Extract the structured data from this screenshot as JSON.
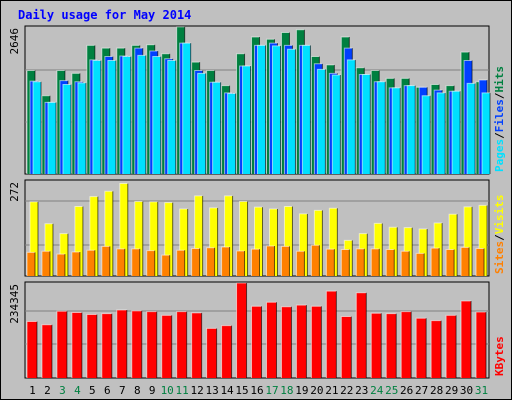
{
  "title": "Daily usage for May 2014",
  "title_color": "#0000ff",
  "colors": {
    "background": "#c0c0c0",
    "hits": "#008040",
    "files": "#0040ff",
    "pages": "#00e0ff",
    "visits": "#ffff00",
    "sites": "#ff8000",
    "kbytes": "#ff0000",
    "weekend_day": "#008040",
    "weekday_day": "#000000"
  },
  "chart_data": [
    {
      "type": "bar",
      "panel": "hits-files-pages",
      "ymax_label": "2646",
      "ylim": [
        0,
        2646
      ],
      "legend": [
        "Pages",
        "Files",
        "Hits"
      ],
      "categories": [
        "1",
        "2",
        "3",
        "4",
        "5",
        "6",
        "7",
        "8",
        "9",
        "10",
        "11",
        "12",
        "13",
        "14",
        "15",
        "16",
        "17",
        "18",
        "19",
        "20",
        "21",
        "22",
        "23",
        "24",
        "25",
        "26",
        "27",
        "28",
        "29",
        "30",
        "31"
      ],
      "series": [
        {
          "name": "Hits",
          "values": [
            1850,
            1400,
            1850,
            1800,
            2300,
            2250,
            2250,
            2300,
            2310,
            2150,
            2630,
            2000,
            1850,
            1580,
            2150,
            2450,
            2410,
            2530,
            2580,
            2100,
            1950,
            2450,
            1900,
            1850,
            1710,
            1710,
            1550,
            1600,
            1580,
            2180,
            1650
          ]
        },
        {
          "name": "Files",
          "values": [
            1660,
            1280,
            1670,
            1650,
            2040,
            2100,
            2110,
            2250,
            2200,
            2060,
            2340,
            1850,
            1640,
            1450,
            1930,
            2300,
            2340,
            2300,
            2300,
            1970,
            1800,
            2250,
            1780,
            1650,
            1540,
            1580,
            1550,
            1500,
            1480,
            2030,
            1680
          ]
        },
        {
          "name": "Pages",
          "values": [
            1650,
            1280,
            1600,
            1630,
            2030,
            2030,
            2100,
            2120,
            2100,
            2030,
            2340,
            1800,
            1640,
            1440,
            1930,
            2300,
            2290,
            2230,
            2300,
            1870,
            1770,
            2040,
            1780,
            1650,
            1540,
            1580,
            1400,
            1450,
            1480,
            1620,
            1450
          ]
        }
      ]
    },
    {
      "type": "bar",
      "panel": "visits-sites",
      "ymax_label": "272",
      "ylim": [
        0,
        272
      ],
      "legend": [
        "Sites",
        "Visits"
      ],
      "categories": [
        "1",
        "2",
        "3",
        "4",
        "5",
        "6",
        "7",
        "8",
        "9",
        "10",
        "11",
        "12",
        "13",
        "14",
        "15",
        "16",
        "17",
        "18",
        "19",
        "20",
        "21",
        "22",
        "23",
        "24",
        "25",
        "26",
        "27",
        "28",
        "29",
        "30",
        "31"
      ],
      "series": [
        {
          "name": "Visits",
          "values": [
            210,
            148,
            120,
            197,
            225,
            240,
            262,
            211,
            210,
            208,
            190,
            227,
            193,
            227,
            211,
            195,
            190,
            197,
            176,
            186,
            192,
            101,
            120,
            149,
            138,
            137,
            133,
            150,
            175,
            196,
            200
          ]
        },
        {
          "name": "Sites",
          "values": [
            67,
            70,
            62,
            68,
            73,
            84,
            77,
            77,
            72,
            59,
            73,
            78,
            80,
            82,
            71,
            76,
            85,
            84,
            70,
            87,
            76,
            75,
            77,
            77,
            75,
            70,
            64,
            79,
            75,
            81,
            78
          ]
        }
      ]
    },
    {
      "type": "bar",
      "panel": "kbytes",
      "ymax_label": "234345",
      "ylim": [
        0,
        234345
      ],
      "legend": [
        "KBytes"
      ],
      "categories": [
        "1",
        "2",
        "3",
        "4",
        "5",
        "6",
        "7",
        "8",
        "9",
        "10",
        "11",
        "12",
        "13",
        "14",
        "15",
        "16",
        "17",
        "18",
        "19",
        "20",
        "21",
        "22",
        "23",
        "24",
        "25",
        "26",
        "27",
        "28",
        "29",
        "30",
        "31"
      ],
      "series": [
        {
          "name": "KBytes",
          "values": [
            138000,
            130000,
            163000,
            160000,
            155000,
            157000,
            166000,
            164000,
            162000,
            153000,
            162000,
            159000,
            121000,
            128000,
            232000,
            175000,
            185000,
            174000,
            178000,
            175000,
            212000,
            150000,
            208000,
            158000,
            157000,
            162000,
            146000,
            140000,
            153000,
            188000,
            161000
          ]
        }
      ]
    }
  ]
}
